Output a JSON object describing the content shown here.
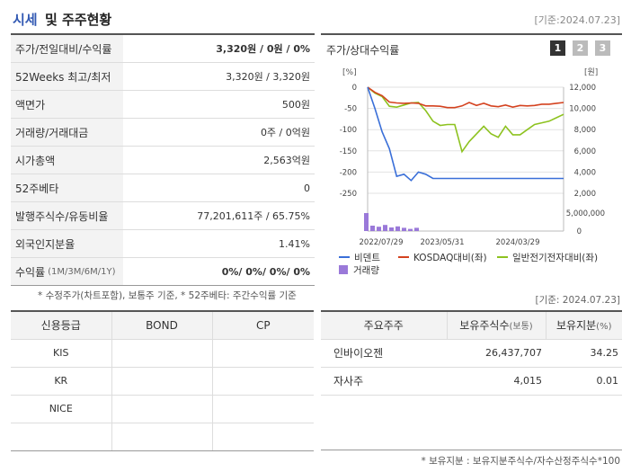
{
  "header": {
    "title_part1": "시세",
    "title_part2": "및 주주현황",
    "date": "[기준:2024.07.23]"
  },
  "quote": [
    {
      "label": "주가/전일대비/수익률",
      "value": "3,320원 / 0원 / 0%",
      "bold": true
    },
    {
      "label": "52Weeks 최고/최저",
      "value": "3,320원 / 3,320원"
    },
    {
      "label": "액면가",
      "value": "500원"
    },
    {
      "label": "거래량/거래대금",
      "value": "0주 / 0억원"
    },
    {
      "label": "시가총액",
      "value": "2,563억원"
    },
    {
      "label": "52주베타",
      "value": "0"
    },
    {
      "label": "발행주식수/유동비율",
      "value": "77,201,611주 / 65.75%"
    },
    {
      "label": "외국인지분율",
      "value": "1.41%"
    },
    {
      "label": "수익률",
      "label_small": "(1M/3M/6M/1Y)",
      "value": "0%/ 0%/ 0%/ 0%",
      "bold": true
    }
  ],
  "chart_panel": {
    "title": "주가/상대수익률",
    "pages": [
      "1",
      "2",
      "3"
    ],
    "active_page": "1"
  },
  "chart_data": {
    "type": "line",
    "left_unit": "[%]",
    "right_unit": "[원]",
    "left_ticks": [
      "0",
      "-50",
      "-100",
      "-150",
      "-200",
      "-250"
    ],
    "right_ticks": [
      "12,000",
      "10,000",
      "8,000",
      "6,000",
      "4,000",
      "2,000"
    ],
    "left_ylim": [
      -250,
      0
    ],
    "right_ylim": [
      2000,
      12000
    ],
    "volume_ticks": [
      "5,000,000",
      "0"
    ],
    "x_ticks": [
      "2022/07/29",
      "2023/05/31",
      "2024/03/29"
    ],
    "series": [
      {
        "name": "비덴트",
        "color": "#3a6fd8",
        "values": [
          0,
          -50,
          -105,
          -145,
          -210,
          -205,
          -220,
          -200,
          -205,
          -215,
          -215,
          -215,
          -215,
          -215,
          -215,
          -215,
          -215,
          -215,
          -215,
          -215,
          -215,
          -215,
          -215,
          -215,
          -215,
          -215,
          -215,
          -215
        ]
      },
      {
        "name": "KOSDAQ대비(좌)",
        "color": "#d4421f",
        "values": [
          0,
          -12,
          -20,
          -35,
          -37,
          -38,
          -37,
          -38,
          -44,
          -44,
          -45,
          -48,
          -48,
          -44,
          -36,
          -43,
          -38,
          -44,
          -46,
          -42,
          -47,
          -43,
          -44,
          -43,
          -40,
          -40,
          -38,
          -36
        ]
      },
      {
        "name": "일반전기전자대비(좌)",
        "color": "#8dc21f",
        "values": [
          0,
          -14,
          -22,
          -45,
          -47,
          -42,
          -37,
          -36,
          -55,
          -80,
          -90,
          -88,
          -88,
          -152,
          -128,
          -110,
          -92,
          -110,
          -118,
          -92,
          -112,
          -112,
          -100,
          -88,
          -84,
          -80,
          -72,
          -64
        ]
      },
      {
        "name": "거래량",
        "color": "#9a79d9",
        "values": [
          5000000,
          1500000,
          1200000,
          1700000,
          1000000,
          1300000,
          900000,
          600000,
          900000
        ]
      }
    ]
  },
  "notes": {
    "left": "* 수정주가(차트포함), 보통주 기준, * 52주베타: 주간수익률 기준",
    "right": "[기준: 2024.07.23]",
    "bottom": "* 보유지분 : 보유지분주식수/자수산정주식수*100"
  },
  "credit": {
    "headers": [
      "신용등급",
      "BOND",
      "CP"
    ],
    "rows": [
      [
        "KIS",
        "",
        ""
      ],
      [
        "KR",
        "",
        ""
      ],
      [
        "NICE",
        "",
        ""
      ],
      [
        "",
        "",
        ""
      ]
    ]
  },
  "holders": {
    "headers": [
      "주요주주",
      "보유주식수",
      "(보통)",
      "보유지분",
      "(%)"
    ],
    "rows": [
      {
        "name": "인바이오젠",
        "shares": "26,437,707",
        "pct": "34.25"
      },
      {
        "name": "자사주",
        "shares": "4,015",
        "pct": "0.01"
      }
    ]
  }
}
